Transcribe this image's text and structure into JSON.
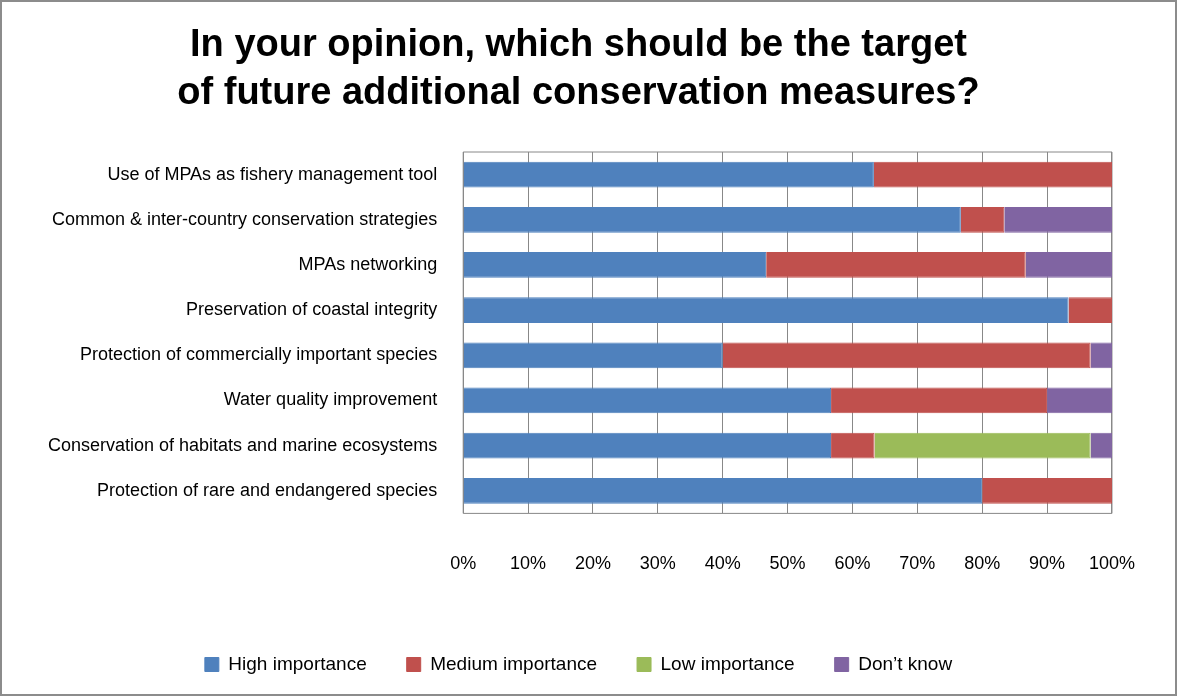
{
  "chart_data": {
    "type": "bar",
    "orientation": "horizontal",
    "stacked": true,
    "title": "In your opinion, which should be the target of future additional conservation measures?",
    "categories": [
      "Use of MPAs as fishery management tool",
      "Common & inter-country conservation strategies",
      "MPAs networking",
      "Preservation of coastal integrity",
      "Protection of commercially important species",
      "Water quality improvement",
      "Conservation of habitats and marine ecosystems",
      "Protection of rare and endangered species"
    ],
    "series": [
      {
        "name": "High importance",
        "color": "#4f81bd",
        "values": [
          63.3,
          76.7,
          46.7,
          93.3,
          40,
          56.7,
          56.7,
          80
        ]
      },
      {
        "name": "Medium importance",
        "color": "#c0504d",
        "values": [
          36.7,
          6.7,
          40,
          6.7,
          56.7,
          33.3,
          6.7,
          20
        ]
      },
      {
        "name": "Low importance",
        "color": "#9bbb59",
        "values": [
          0,
          0,
          0,
          0,
          0,
          0,
          33.3,
          0
        ]
      },
      {
        "name": "Don’t know",
        "color": "#8064a2",
        "values": [
          0,
          16.6,
          13.3,
          0,
          3.3,
          10,
          3.3,
          0
        ]
      }
    ],
    "xlim": [
      0,
      100
    ],
    "xticks": [
      {
        "value": 0,
        "label": "0%"
      },
      {
        "value": 10,
        "label": "10%"
      },
      {
        "value": 20,
        "label": "20%"
      },
      {
        "value": 30,
        "label": "30%"
      },
      {
        "value": 40,
        "label": "40%"
      },
      {
        "value": 50,
        "label": "50%"
      },
      {
        "value": 60,
        "label": "60%"
      },
      {
        "value": 70,
        "label": "70%"
      },
      {
        "value": 80,
        "label": "80%"
      },
      {
        "value": 90,
        "label": "90%"
      },
      {
        "value": 100,
        "label": "100%"
      }
    ],
    "grid": "x",
    "legend": "bottom"
  }
}
